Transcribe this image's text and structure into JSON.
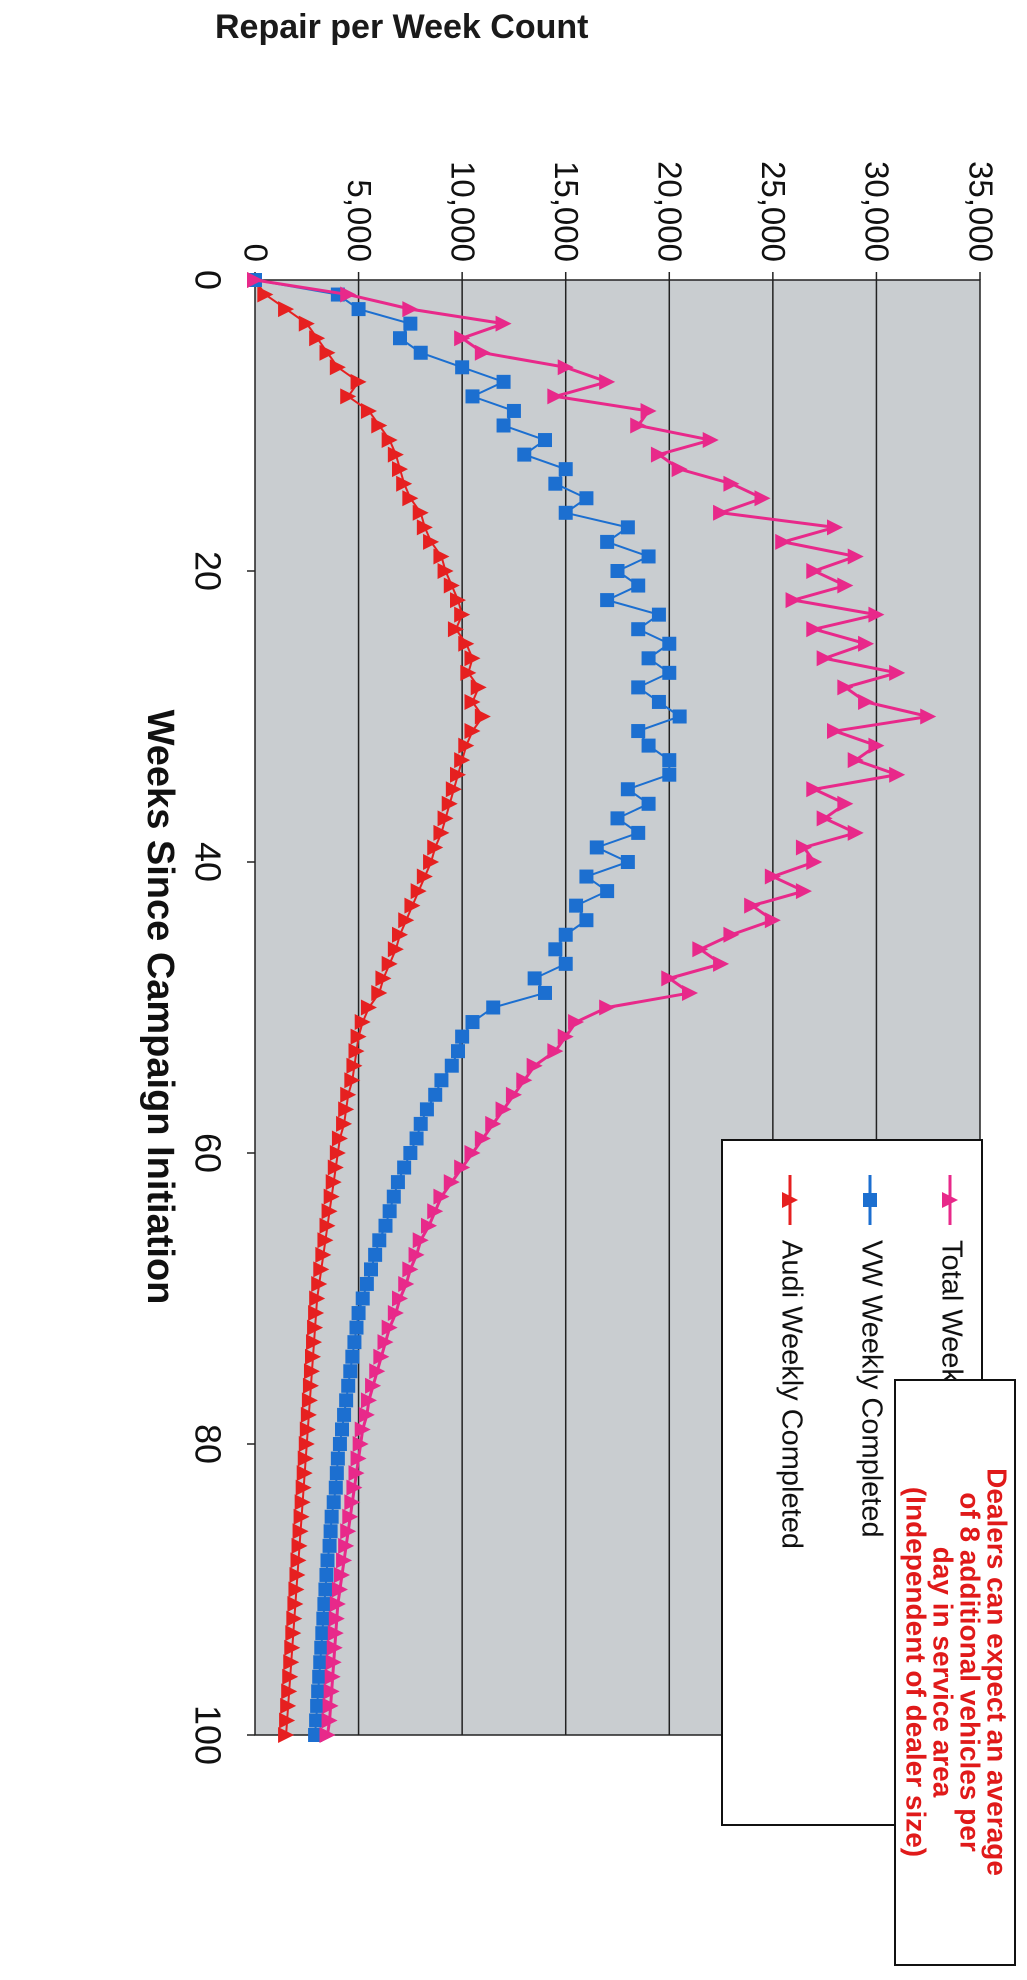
{
  "chart_data": {
    "type": "line",
    "title": "Repair per Week Count",
    "xlabel": "Weeks Since Campaign Initiation",
    "ylabel": "",
    "xlim": [
      0,
      100
    ],
    "ylim": [
      0,
      35000
    ],
    "x_ticks": [
      "0",
      "20",
      "40",
      "60",
      "80",
      "100"
    ],
    "y_ticks": [
      "0",
      "5,000",
      "10,000",
      "15,000",
      "20,000",
      "25,000",
      "30,000",
      "35,000"
    ],
    "grid": "horizontal",
    "legend_position": "bottom-right",
    "series": [
      {
        "name": "Total Weekly Completed",
        "color": "#e8298a",
        "marker": "triangle",
        "x": [
          0,
          1,
          2,
          3,
          4,
          5,
          6,
          7,
          8,
          9,
          10,
          11,
          12,
          13,
          14,
          15,
          16,
          17,
          18,
          19,
          20,
          21,
          22,
          23,
          24,
          25,
          26,
          27,
          28,
          29,
          30,
          31,
          32,
          33,
          34,
          35,
          36,
          37,
          38,
          39,
          40,
          41,
          42,
          43,
          44,
          45,
          46,
          47,
          48,
          49,
          50,
          51,
          52,
          53,
          54,
          55,
          56,
          57,
          58,
          59,
          60,
          61,
          62,
          63,
          64,
          65,
          66,
          67,
          68,
          69,
          70,
          71,
          72,
          73,
          74,
          75,
          76,
          77,
          78,
          79,
          80,
          81,
          82,
          83,
          84,
          85,
          86,
          87,
          88,
          89,
          90,
          91,
          92,
          93,
          94,
          95,
          96,
          97,
          98,
          99,
          100
        ],
        "values": [
          0,
          4500,
          7500,
          12000,
          10000,
          11000,
          15000,
          17000,
          14500,
          19000,
          18500,
          22000,
          19500,
          20500,
          23000,
          24500,
          22500,
          28000,
          25500,
          29000,
          27000,
          28500,
          26000,
          30000,
          27000,
          29500,
          27500,
          31000,
          28500,
          29500,
          32500,
          28000,
          30000,
          29000,
          31000,
          27000,
          28500,
          27500,
          29000,
          26500,
          27000,
          25000,
          26500,
          24000,
          25000,
          23000,
          21500,
          22500,
          20000,
          21000,
          17000,
          15500,
          15000,
          14500,
          13500,
          13000,
          12500,
          12000,
          11500,
          11000,
          10500,
          10000,
          9500,
          9000,
          8700,
          8400,
          8000,
          7800,
          7500,
          7300,
          7000,
          6800,
          6500,
          6300,
          6100,
          5900,
          5700,
          5500,
          5400,
          5200,
          5100,
          5000,
          4900,
          4800,
          4700,
          4600,
          4500,
          4400,
          4300,
          4200,
          4100,
          4000,
          3950,
          3900,
          3850,
          3800,
          3750,
          3700,
          3650,
          3600,
          3500
        ]
      },
      {
        "name": "VW Weekly Completed",
        "color": "#1c6fd0",
        "marker": "square",
        "x": [
          0,
          1,
          2,
          3,
          4,
          5,
          6,
          7,
          8,
          9,
          10,
          11,
          12,
          13,
          14,
          15,
          16,
          17,
          18,
          19,
          20,
          21,
          22,
          23,
          24,
          25,
          26,
          27,
          28,
          29,
          30,
          31,
          32,
          33,
          34,
          35,
          36,
          37,
          38,
          39,
          40,
          41,
          42,
          43,
          44,
          45,
          46,
          47,
          48,
          49,
          50,
          51,
          52,
          53,
          54,
          55,
          56,
          57,
          58,
          59,
          60,
          61,
          62,
          63,
          64,
          65,
          66,
          67,
          68,
          69,
          70,
          71,
          72,
          73,
          74,
          75,
          76,
          77,
          78,
          79,
          80,
          81,
          82,
          83,
          84,
          85,
          86,
          87,
          88,
          89,
          90,
          91,
          92,
          93,
          94,
          95,
          96,
          97,
          98,
          99,
          100
        ],
        "values": [
          0,
          4000,
          5000,
          7500,
          7000,
          8000,
          10000,
          12000,
          10500,
          12500,
          12000,
          14000,
          13000,
          15000,
          14500,
          16000,
          15000,
          18000,
          17000,
          19000,
          17500,
          18500,
          17000,
          19500,
          18500,
          20000,
          19000,
          20000,
          18500,
          19500,
          20500,
          18500,
          19000,
          20000,
          20000,
          18000,
          19000,
          17500,
          18500,
          16500,
          18000,
          16000,
          17000,
          15500,
          16000,
          15000,
          14500,
          15000,
          13500,
          14000,
          11500,
          10500,
          10000,
          9800,
          9500,
          9000,
          8700,
          8300,
          8000,
          7800,
          7500,
          7200,
          6900,
          6700,
          6500,
          6300,
          6000,
          5800,
          5600,
          5400,
          5200,
          5000,
          4900,
          4800,
          4700,
          4600,
          4500,
          4400,
          4300,
          4200,
          4100,
          4000,
          3950,
          3900,
          3800,
          3700,
          3650,
          3600,
          3500,
          3450,
          3400,
          3350,
          3300,
          3250,
          3200,
          3150,
          3100,
          3050,
          3000,
          2950,
          2900
        ]
      },
      {
        "name": "Audi Weekly Completed",
        "color": "#e62020",
        "marker": "triangle",
        "x": [
          0,
          1,
          2,
          3,
          4,
          5,
          6,
          7,
          8,
          9,
          10,
          11,
          12,
          13,
          14,
          15,
          16,
          17,
          18,
          19,
          20,
          21,
          22,
          23,
          24,
          25,
          26,
          27,
          28,
          29,
          30,
          31,
          32,
          33,
          34,
          35,
          36,
          37,
          38,
          39,
          40,
          41,
          42,
          43,
          44,
          45,
          46,
          47,
          48,
          49,
          50,
          51,
          52,
          53,
          54,
          55,
          56,
          57,
          58,
          59,
          60,
          61,
          62,
          63,
          64,
          65,
          66,
          67,
          68,
          69,
          70,
          71,
          72,
          73,
          74,
          75,
          76,
          77,
          78,
          79,
          80,
          81,
          82,
          83,
          84,
          85,
          86,
          87,
          88,
          89,
          90,
          91,
          92,
          93,
          94,
          95,
          96,
          97,
          98,
          99,
          100
        ],
        "values": [
          0,
          500,
          1500,
          2500,
          3000,
          3500,
          4000,
          5000,
          4500,
          5500,
          6000,
          6500,
          6800,
          7000,
          7200,
          7500,
          8000,
          8200,
          8500,
          9000,
          9200,
          9500,
          9800,
          10000,
          9700,
          10200,
          10500,
          10300,
          10800,
          10500,
          11000,
          10500,
          10200,
          10000,
          9800,
          9600,
          9400,
          9200,
          9000,
          8700,
          8500,
          8200,
          7900,
          7600,
          7300,
          7000,
          6800,
          6500,
          6200,
          6000,
          5500,
          5200,
          5000,
          4900,
          4800,
          4700,
          4500,
          4400,
          4300,
          4100,
          4000,
          3900,
          3800,
          3700,
          3600,
          3500,
          3400,
          3300,
          3200,
          3100,
          3000,
          2950,
          2900,
          2850,
          2800,
          2750,
          2700,
          2650,
          2600,
          2550,
          2500,
          2450,
          2400,
          2350,
          2300,
          2250,
          2200,
          2150,
          2100,
          2050,
          2000,
          1950,
          1900,
          1850,
          1800,
          1750,
          1700,
          1650,
          1600,
          1550,
          1500
        ]
      }
    ]
  },
  "note": {
    "lines": [
      "Dealers can expect an average",
      "of 8 additional vehicles per",
      "day in service area",
      "(Independent of dealer size)"
    ]
  }
}
